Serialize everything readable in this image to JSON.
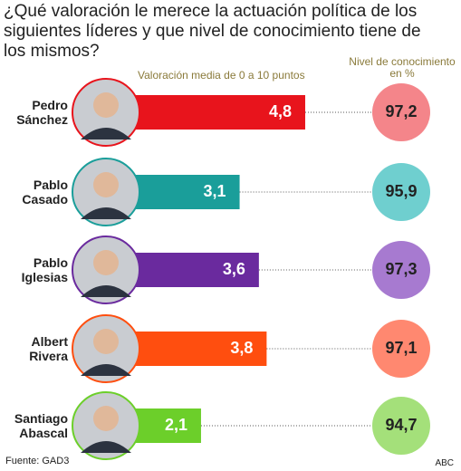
{
  "chart_data": {
    "type": "bar",
    "title": "¿Qué valoración le merece la actuación política de los siguientes líderes y que nivel de conocimiento tiene de los mismos?",
    "subtitle": "Valoración media de 0 a 10 puntos",
    "secondary_title": "Nivel de conocimiento en %",
    "categories": [
      "Pedro Sánchez",
      "Pablo Casado",
      "Pablo Iglesias",
      "Albert Rivera",
      "Santiago Abascal"
    ],
    "values": [
      4.8,
      3.1,
      3.6,
      3.8,
      2.1
    ],
    "value_labels": [
      "4,8",
      "3,1",
      "3,6",
      "3,8",
      "2,1"
    ],
    "colors": [
      "#e8141c",
      "#1a9e9a",
      "#6a2a9e",
      "#ff4e0f",
      "#6ccf2a"
    ],
    "knowledge": {
      "values": [
        97.2,
        95.9,
        97.3,
        97.1,
        94.7
      ],
      "value_labels": [
        "97,2",
        "95,9",
        "97,3",
        "97,1",
        "94,7"
      ],
      "colors": [
        "#f4858a",
        "#6fcfcf",
        "#a77ad0",
        "#ff8870",
        "#a4e07a"
      ]
    },
    "source": "Fuente: GAD3",
    "credit": "ABC"
  }
}
